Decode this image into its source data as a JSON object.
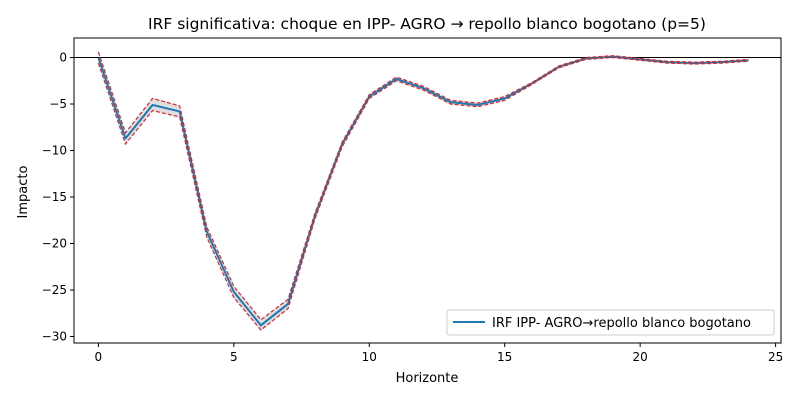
{
  "chart_data": {
    "type": "line",
    "title": "IRF significativa: choque en IPP- AGRO → repollo blanco bogotano (p=5)",
    "xlabel": "Horizonte",
    "ylabel": "Impacto",
    "xlim": [
      -0.9,
      25.2
    ],
    "ylim": [
      -30.7,
      2.1
    ],
    "xticks": [
      0,
      5,
      10,
      15,
      20,
      25
    ],
    "yticks": [
      0,
      -5,
      -10,
      -15,
      -20,
      -25,
      -30
    ],
    "grid": false,
    "zero_line": true,
    "legend_position": "lower right",
    "x": [
      0,
      1,
      2,
      3,
      4,
      5,
      6,
      7,
      8,
      9,
      10,
      11,
      12,
      13,
      14,
      15,
      16,
      17,
      18,
      19,
      20,
      21,
      22,
      23,
      24
    ],
    "series": [
      {
        "name": "IRF IPP- AGRO→repollo blanco bogotano",
        "color": "#1f77b4",
        "values": [
          0.0,
          -8.7,
          -5.1,
          -5.8,
          -18.7,
          -25.2,
          -28.8,
          -26.5,
          -17.0,
          -9.3,
          -4.2,
          -2.3,
          -3.3,
          -4.8,
          -5.1,
          -4.4,
          -2.8,
          -1.0,
          -0.1,
          0.1,
          -0.2,
          -0.5,
          -0.6,
          -0.5,
          -0.3
        ]
      }
    ],
    "band": {
      "color": "#d62728",
      "fill": "#d3d3d3",
      "upper": [
        0.6,
        -8.1,
        -4.4,
        -5.2,
        -18.2,
        -24.6,
        -28.2,
        -26.0,
        -16.7,
        -9.1,
        -4.0,
        -2.1,
        -3.1,
        -4.6,
        -4.9,
        -4.2,
        -2.7,
        -0.9,
        0.0,
        0.2,
        -0.1,
        -0.4,
        -0.5,
        -0.4,
        -0.2
      ],
      "lower": [
        -0.6,
        -9.3,
        -5.7,
        -6.4,
        -19.3,
        -25.8,
        -29.3,
        -27.0,
        -17.3,
        -9.6,
        -4.4,
        -2.5,
        -3.5,
        -5.0,
        -5.3,
        -4.6,
        -2.9,
        -1.1,
        -0.2,
        0.0,
        -0.3,
        -0.6,
        -0.7,
        -0.6,
        -0.4
      ]
    }
  }
}
